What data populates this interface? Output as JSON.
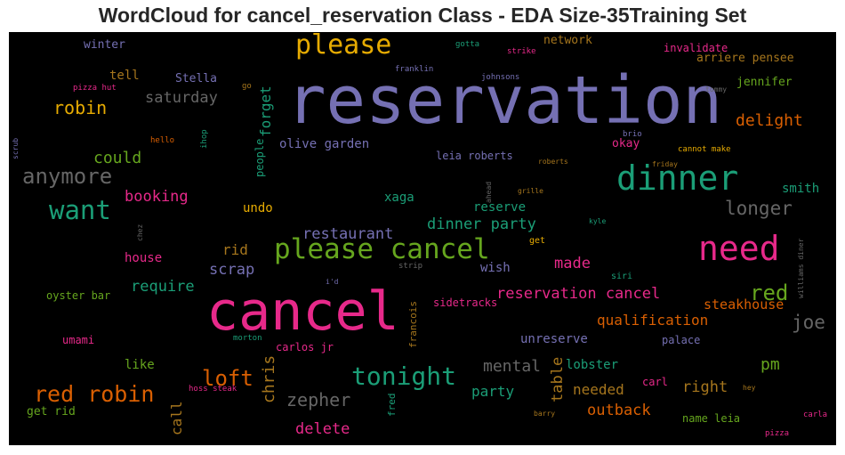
{
  "title": "WordCloud for cancel_reservation Class - EDA Size-35Training Set",
  "chart_data": {
    "type": "wordcloud",
    "title": "WordCloud for cancel_reservation Class - EDA Size-35Training Set",
    "background": "#000000",
    "words": [
      {
        "text": "reservation",
        "color": "#7570b3"
      },
      {
        "text": "cancel",
        "color": "#e7298a"
      },
      {
        "text": "please cancel",
        "color": "#66a61e"
      },
      {
        "text": "dinner",
        "color": "#1b9e77"
      },
      {
        "text": "need",
        "color": "#e7298a"
      },
      {
        "text": "please",
        "color": "#e6ab02"
      },
      {
        "text": "want",
        "color": "#1b9e77"
      },
      {
        "text": "tonight",
        "color": "#1b9e77"
      },
      {
        "text": "anymore",
        "color": "#666666"
      },
      {
        "text": "red robin",
        "color": "#d95f02"
      },
      {
        "text": "loft",
        "color": "#d95f02"
      },
      {
        "text": "red",
        "color": "#66a61e"
      },
      {
        "text": "longer",
        "color": "#666666"
      },
      {
        "text": "robin",
        "color": "#e6ab02"
      },
      {
        "text": "zepher",
        "color": "#666666"
      },
      {
        "text": "joe",
        "color": "#666666"
      },
      {
        "text": "mental",
        "color": "#666666"
      },
      {
        "text": "chris",
        "color": "#a6761d"
      },
      {
        "text": "reservation cancel",
        "color": "#e7298a"
      },
      {
        "text": "delight",
        "color": "#d95f02"
      },
      {
        "text": "restaurant",
        "color": "#7570b3"
      },
      {
        "text": "dinner party",
        "color": "#1b9e77"
      },
      {
        "text": "booking",
        "color": "#e7298a"
      },
      {
        "text": "could",
        "color": "#66a61e"
      },
      {
        "text": "saturday",
        "color": "#666666"
      },
      {
        "text": "made",
        "color": "#e7298a"
      },
      {
        "text": "qualification",
        "color": "#d95f02"
      },
      {
        "text": "scrap",
        "color": "#7570b3"
      },
      {
        "text": "require",
        "color": "#1b9e77"
      },
      {
        "text": "delete",
        "color": "#e7298a"
      },
      {
        "text": "outback",
        "color": "#d95f02"
      },
      {
        "text": "pm",
        "color": "#66a61e"
      },
      {
        "text": "right",
        "color": "#a6761d"
      },
      {
        "text": "table",
        "color": "#a6761d"
      },
      {
        "text": "call",
        "color": "#a6761d"
      },
      {
        "text": "party",
        "color": "#1b9e77"
      },
      {
        "text": "needed",
        "color": "#a6761d"
      },
      {
        "text": "steakhouse",
        "color": "#d95f02"
      },
      {
        "text": "forget",
        "color": "#1b9e77"
      },
      {
        "text": "rid",
        "color": "#a6761d"
      },
      {
        "text": "unreserve",
        "color": "#7570b3"
      },
      {
        "text": "olive garden",
        "color": "#7570b3"
      },
      {
        "text": "lobster",
        "color": "#1b9e77"
      },
      {
        "text": "wish",
        "color": "#7570b3"
      },
      {
        "text": "smith",
        "color": "#1b9e77"
      },
      {
        "text": "tell",
        "color": "#a6761d"
      },
      {
        "text": "network",
        "color": "#a6761d"
      },
      {
        "text": "xaga",
        "color": "#1b9e77"
      },
      {
        "text": "reserve",
        "color": "#1b9e77"
      },
      {
        "text": "undo",
        "color": "#e6ab02"
      },
      {
        "text": "house",
        "color": "#e7298a"
      },
      {
        "text": "like",
        "color": "#66a61e"
      },
      {
        "text": "winter",
        "color": "#7570b3"
      },
      {
        "text": "Stella",
        "color": "#7570b3"
      },
      {
        "text": "arriere pensee",
        "color": "#a6761d"
      },
      {
        "text": "jennifer",
        "color": "#66a61e"
      },
      {
        "text": "invalidate",
        "color": "#e7298a"
      },
      {
        "text": "okay",
        "color": "#e7298a"
      },
      {
        "text": "leia roberts",
        "color": "#7570b3"
      },
      {
        "text": "get rid",
        "color": "#66a61e"
      },
      {
        "text": "umami",
        "color": "#e7298a"
      },
      {
        "text": "oyster bar",
        "color": "#66a61e"
      },
      {
        "text": "people",
        "color": "#1b9e77"
      },
      {
        "text": "carlos jr",
        "color": "#e7298a"
      },
      {
        "text": "palace",
        "color": "#7570b3"
      },
      {
        "text": "carl",
        "color": "#e7298a"
      },
      {
        "text": "name leia",
        "color": "#66a61e"
      },
      {
        "text": "sidetracks",
        "color": "#e7298a"
      },
      {
        "text": "francois",
        "color": "#a6761d"
      },
      {
        "text": "fred",
        "color": "#1b9e77"
      },
      {
        "text": "siri",
        "color": "#1b9e77"
      },
      {
        "text": "strip",
        "color": "#666666"
      },
      {
        "text": "i'd",
        "color": "#7570b3"
      },
      {
        "text": "franklin",
        "color": "#7570b3"
      },
      {
        "text": "johnsons",
        "color": "#7570b3"
      },
      {
        "text": "gotta",
        "color": "#1b9e77"
      },
      {
        "text": "strike",
        "color": "#e7298a"
      },
      {
        "text": "tommy",
        "color": "#666666"
      },
      {
        "text": "brio",
        "color": "#7570b3"
      },
      {
        "text": "friday",
        "color": "#a6761d"
      },
      {
        "text": "cannot make",
        "color": "#e6ab02"
      },
      {
        "text": "roberts",
        "color": "#a6761d"
      },
      {
        "text": "grille",
        "color": "#a6761d"
      },
      {
        "text": "ahead",
        "color": "#666666"
      },
      {
        "text": "kyle",
        "color": "#1b9e77"
      },
      {
        "text": "get",
        "color": "#e6ab02"
      },
      {
        "text": "williams diner",
        "color": "#666666"
      },
      {
        "text": "chez",
        "color": "#666666"
      },
      {
        "text": "hello",
        "color": "#d95f02"
      },
      {
        "text": "ihop",
        "color": "#1b9e77"
      },
      {
        "text": "go",
        "color": "#a6761d"
      },
      {
        "text": "pizza hut",
        "color": "#e7298a"
      },
      {
        "text": "scrub",
        "color": "#7570b3"
      },
      {
        "text": "morton",
        "color": "#1b9e77"
      },
      {
        "text": "hoss steak",
        "color": "#e7298a"
      },
      {
        "text": "hey",
        "color": "#a6761d"
      },
      {
        "text": "barry",
        "color": "#a6761d"
      },
      {
        "text": "carla",
        "color": "#e7298a"
      },
      {
        "text": "pizza",
        "color": "#e7298a"
      }
    ]
  }
}
